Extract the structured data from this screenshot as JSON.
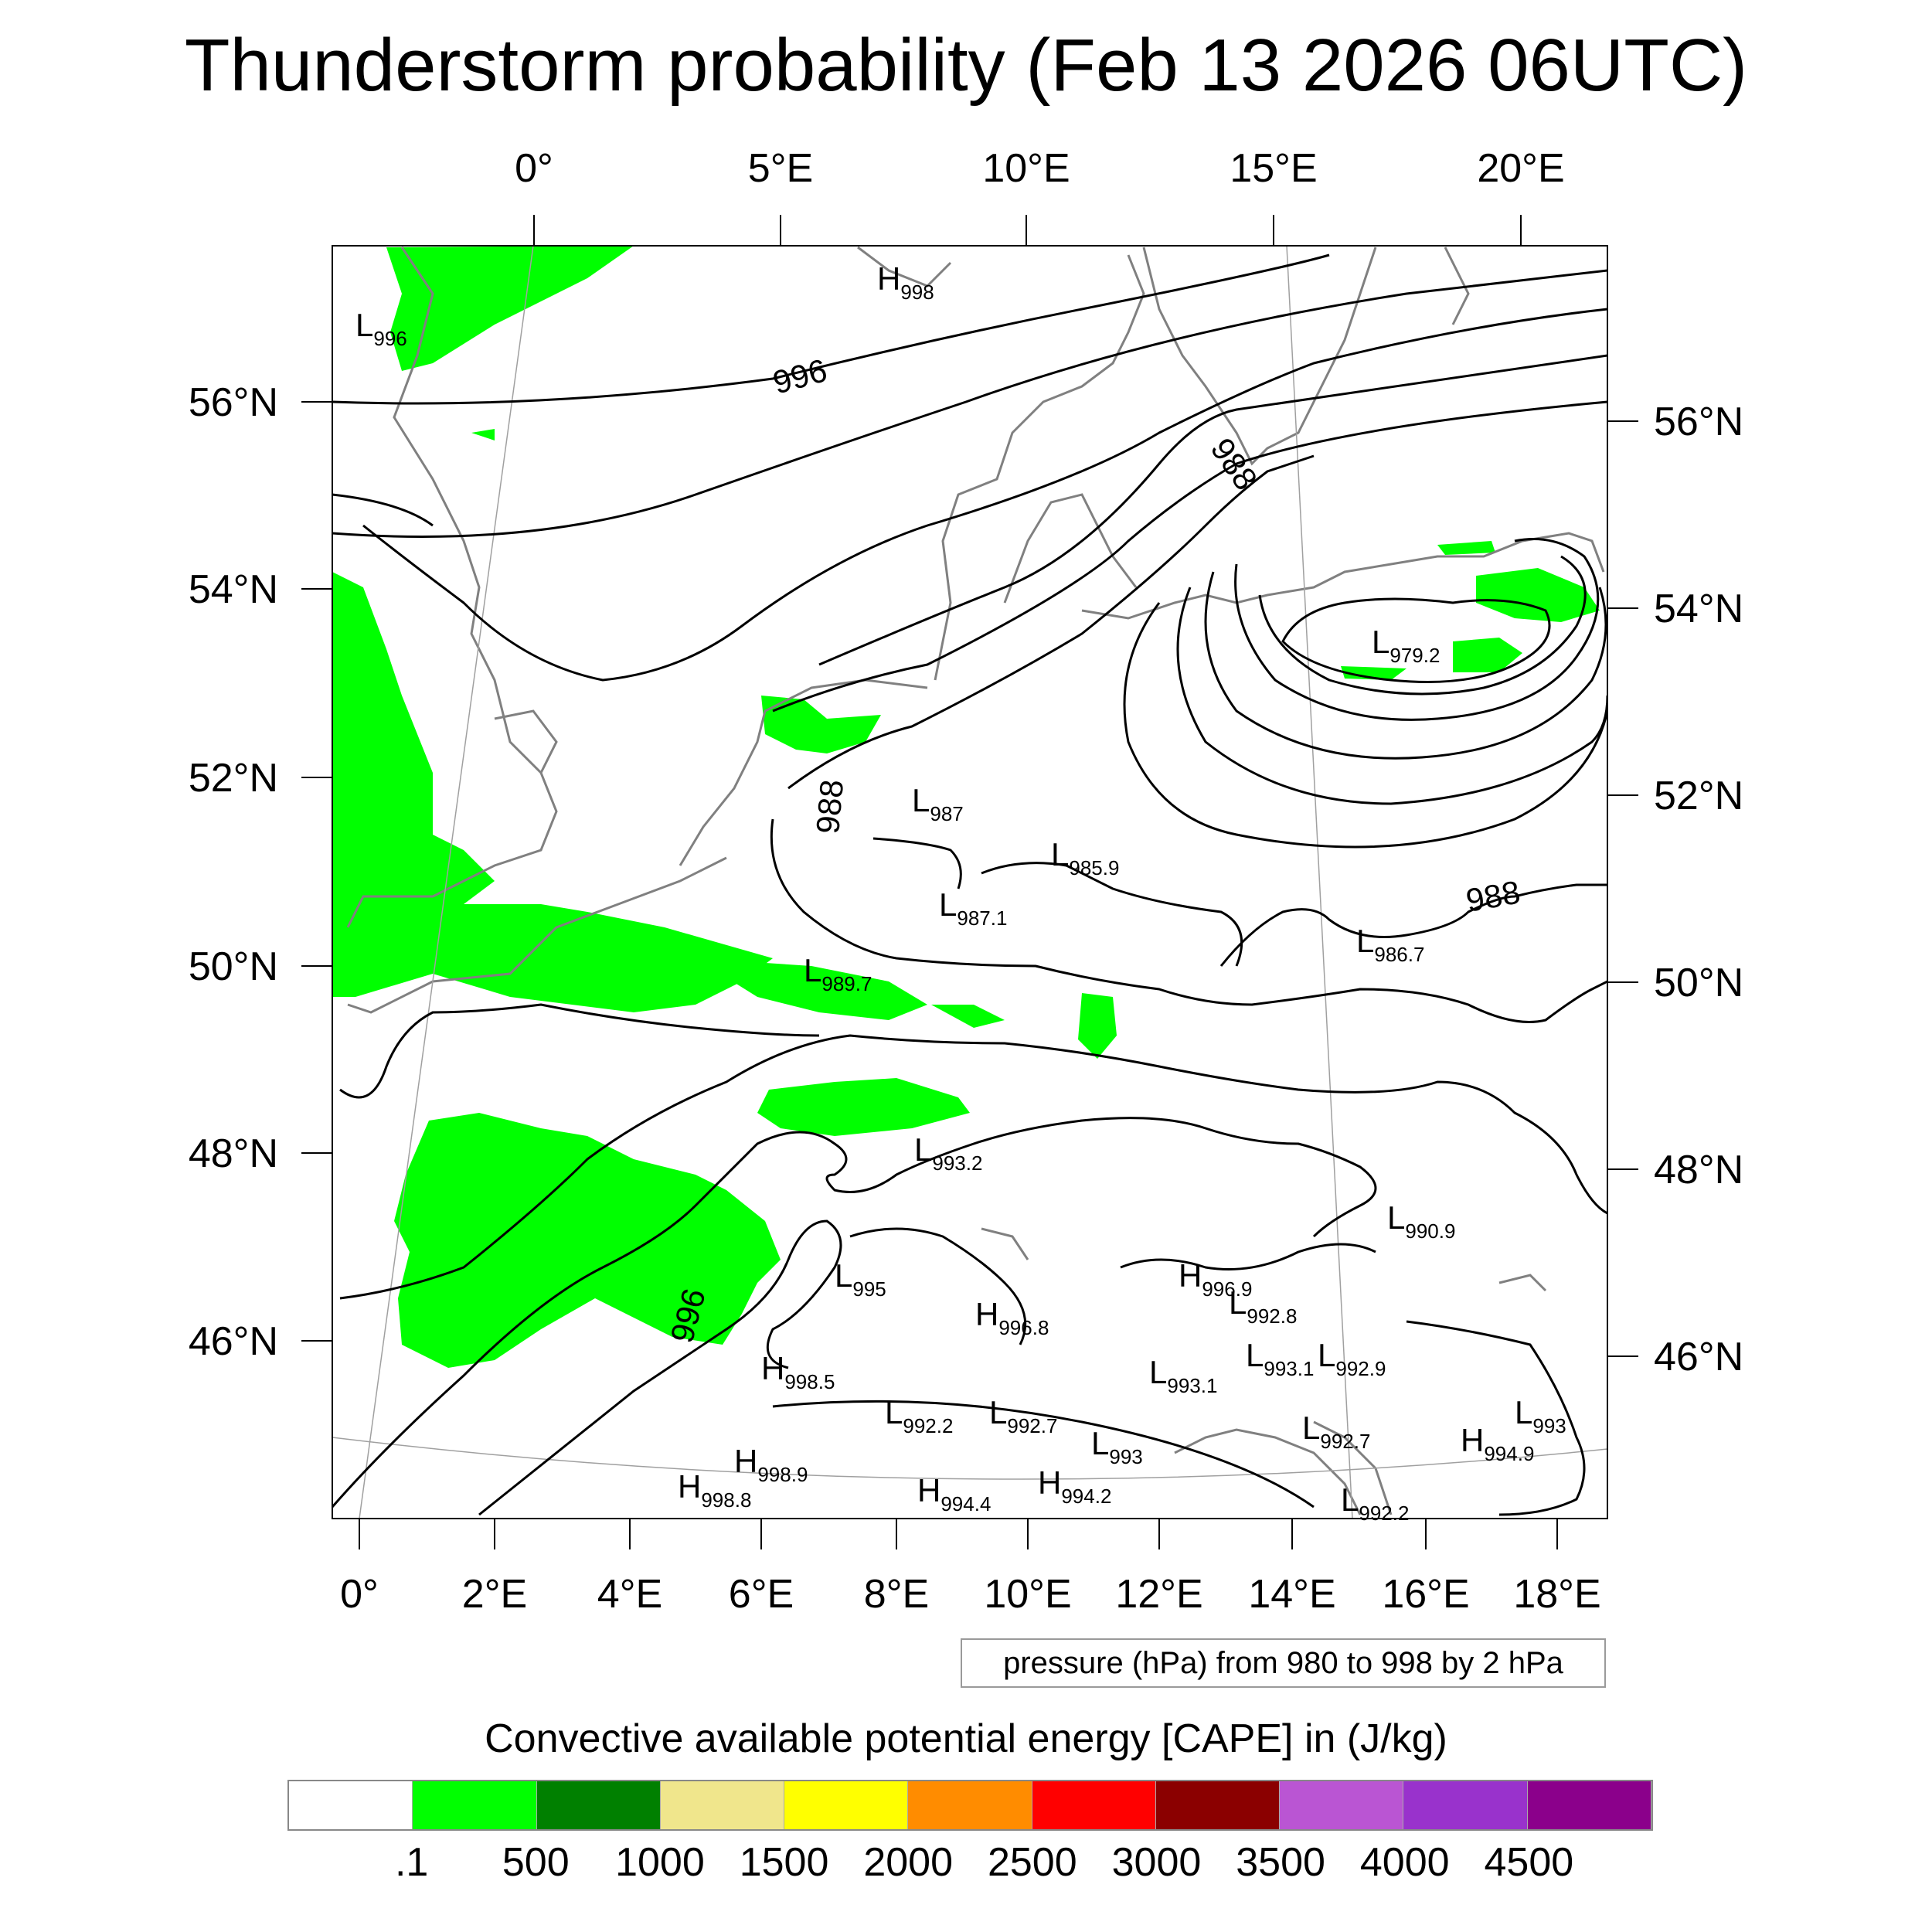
{
  "title": "Thunderstorm probability (Feb 13 2026 06UTC)",
  "top_lon_labels": [
    "0°",
    "5°E",
    "10°E",
    "15°E",
    "20°E"
  ],
  "bottom_lon_labels": [
    "0°",
    "2°E",
    "4°E",
    "6°E",
    "8°E",
    "10°E",
    "12°E",
    "14°E",
    "16°E",
    "18°E"
  ],
  "left_lat_labels": [
    "56°N",
    "54°N",
    "52°N",
    "50°N",
    "48°N",
    "46°N"
  ],
  "right_lat_labels": [
    "56°N",
    "54°N",
    "52°N",
    "50°N",
    "48°N",
    "46°N"
  ],
  "contour_labels": [
    "996",
    "988",
    "988",
    "988",
    "996"
  ],
  "pressure_centers": [
    {
      "type": "H",
      "value": "998"
    },
    {
      "type": "L",
      "value": "996"
    },
    {
      "type": "L",
      "value": "979.2"
    },
    {
      "type": "L",
      "value": "987"
    },
    {
      "type": "L",
      "value": "985.9"
    },
    {
      "type": "L",
      "value": "987.1"
    },
    {
      "type": "L",
      "value": "986.7"
    },
    {
      "type": "L",
      "value": "989.7"
    },
    {
      "type": "L",
      "value": "993.2"
    },
    {
      "type": "L",
      "value": "990.9"
    },
    {
      "type": "L",
      "value": "995"
    },
    {
      "type": "H",
      "value": "996.9"
    },
    {
      "type": "L",
      "value": "992.8"
    },
    {
      "type": "H",
      "value": "996.8"
    },
    {
      "type": "L",
      "value": "993.1"
    },
    {
      "type": "L",
      "value": "992.9"
    },
    {
      "type": "L",
      "value": "993.1"
    },
    {
      "type": "H",
      "value": "998.5"
    },
    {
      "type": "L",
      "value": "992.2"
    },
    {
      "type": "L",
      "value": "992.7"
    },
    {
      "type": "L",
      "value": "993"
    },
    {
      "type": "L",
      "value": "992.7"
    },
    {
      "type": "L",
      "value": "993"
    },
    {
      "type": "H",
      "value": "994.9"
    },
    {
      "type": "H",
      "value": "998.9"
    },
    {
      "type": "H",
      "value": "998.8"
    },
    {
      "type": "H",
      "value": "994.4"
    },
    {
      "type": "H",
      "value": "994.2"
    },
    {
      "type": "L",
      "value": "992.2"
    }
  ],
  "info_box": "pressure (hPa) from 980 to 998 by 2 hPa",
  "cape_title": "Convective available potential energy [CAPE] in (J/kg)",
  "colorbar": {
    "colors": [
      "#ffffff",
      "#00ff00",
      "#008000",
      "#f0e68c",
      "#ffff00",
      "#ff8c00",
      "#ff0000",
      "#8b0000",
      "#ba55d3",
      "#9932cc",
      "#8b008b"
    ],
    "labels": [
      ".1",
      "500",
      "1000",
      "1500",
      "2000",
      "2500",
      "3000",
      "3500",
      "4000",
      "4500"
    ]
  },
  "colors": {
    "cape_fill": "#00ff00",
    "isobar": "#000000",
    "coast": "#808080",
    "grid": "#a0a0a0"
  }
}
